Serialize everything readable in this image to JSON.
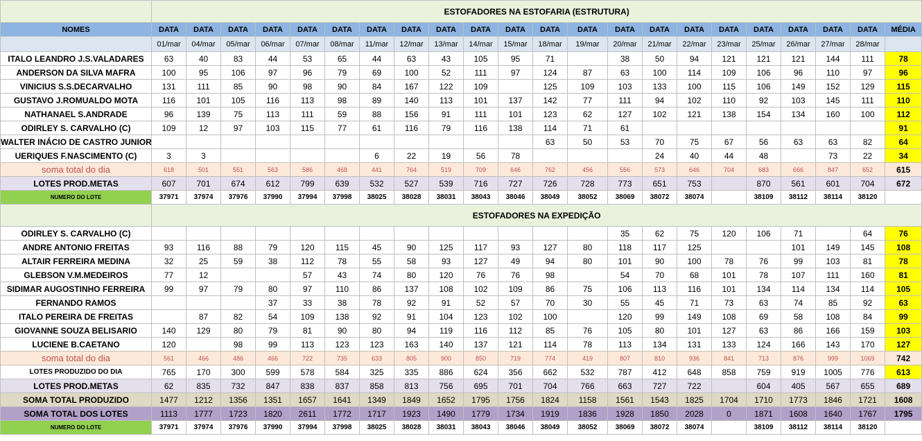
{
  "header": {
    "nomes": "NOMES",
    "data": "DATA",
    "media": "MÉDIA",
    "dates": [
      "01/mar",
      "04/mar",
      "05/mar",
      "06/mar",
      "07/mar",
      "08/mar",
      "11/mar",
      "12/mar",
      "13/mar",
      "14/mar",
      "15/mar",
      "18/mar",
      "19/mar",
      "20/mar",
      "21/mar",
      "22/mar",
      "23/mar",
      "25/mar",
      "26/mar",
      "27/mar",
      "28/mar"
    ]
  },
  "section1": {
    "title": "ESTOFADORES NA ESTOFARIA (ESTRUTURA)",
    "rows": [
      {
        "name": "ITALO LEANDRO J.S.VALADARES",
        "values": [
          "63",
          "40",
          "83",
          "44",
          "53",
          "65",
          "44",
          "63",
          "43",
          "105",
          "95",
          "71",
          "",
          "38",
          "50",
          "94",
          "121",
          "121",
          "121",
          "144",
          "111"
        ],
        "media": "78"
      },
      {
        "name": "ANDERSON DA SILVA MAFRA",
        "values": [
          "100",
          "95",
          "106",
          "97",
          "96",
          "79",
          "69",
          "100",
          "52",
          "111",
          "97",
          "124",
          "87",
          "63",
          "100",
          "114",
          "109",
          "106",
          "96",
          "110",
          "97"
        ],
        "media": "96"
      },
      {
        "name": "VINICIUS S.S.DECARVALHO",
        "values": [
          "131",
          "111",
          "85",
          "90",
          "98",
          "90",
          "84",
          "167",
          "122",
          "109",
          "",
          "125",
          "109",
          "103",
          "133",
          "100",
          "115",
          "106",
          "149",
          "152",
          "129"
        ],
        "media": "115"
      },
      {
        "name": "GUSTAVO J.ROMUALDO MOTA",
        "values": [
          "116",
          "101",
          "105",
          "116",
          "113",
          "98",
          "89",
          "140",
          "113",
          "101",
          "137",
          "142",
          "77",
          "111",
          "94",
          "102",
          "110",
          "92",
          "103",
          "145",
          "111"
        ],
        "media": "110"
      },
      {
        "name": "NATHANAEL S.ANDRADE",
        "values": [
          "96",
          "139",
          "75",
          "113",
          "111",
          "59",
          "88",
          "156",
          "91",
          "111",
          "101",
          "123",
          "62",
          "127",
          "102",
          "121",
          "138",
          "154",
          "134",
          "160",
          "100"
        ],
        "media": "112"
      },
      {
        "name": "ODIRLEY S. CARVALHO (C)",
        "values": [
          "109",
          "12",
          "97",
          "103",
          "115",
          "77",
          "61",
          "116",
          "79",
          "116",
          "138",
          "114",
          "71",
          "61",
          "",
          "",
          "",
          "",
          "",
          "",
          ""
        ],
        "media": "91"
      },
      {
        "name": "WALTER INÁCIO DE CASTRO JUNIOR",
        "values": [
          "",
          "",
          "",
          "",
          "",
          "",
          "",
          "",
          "",
          "",
          "",
          "63",
          "50",
          "53",
          "70",
          "75",
          "67",
          "56",
          "63",
          "63",
          "82"
        ],
        "media": "64"
      },
      {
        "name": "UERIQUES F.NASCIMENTO (C)",
        "values": [
          "3",
          "3",
          "",
          "",
          "",
          "",
          "6",
          "22",
          "19",
          "56",
          "78",
          "",
          "",
          "",
          "24",
          "40",
          "44",
          "48",
          "",
          "73",
          "22"
        ],
        "media": "34"
      }
    ],
    "soma": {
      "name": "soma total  do dia",
      "values": [
        "618",
        "501",
        "551",
        "563",
        "586",
        "468",
        "441",
        "764",
        "519",
        "709",
        "646",
        "762",
        "456",
        "556",
        "573",
        "646",
        "704",
        "683",
        "666",
        "847",
        "652"
      ],
      "media": "615"
    },
    "lotes": {
      "name": "LOTES PROD.METAS",
      "values": [
        "607",
        "701",
        "674",
        "612",
        "799",
        "639",
        "532",
        "527",
        "539",
        "716",
        "727",
        "726",
        "728",
        "773",
        "651",
        "753",
        "",
        "870",
        "561",
        "601",
        "704"
      ],
      "media": "672"
    },
    "numlote": {
      "name": "NUMERO DO LOTE",
      "values": [
        "37971",
        "37974",
        "37976",
        "37990",
        "37994",
        "37998",
        "38025",
        "38028",
        "38031",
        "38043",
        "38046",
        "38049",
        "38052",
        "38069",
        "38072",
        "38074",
        "",
        "38109",
        "38112",
        "38114",
        "38120"
      ],
      "media": ""
    }
  },
  "section2": {
    "title": "ESTOFADORES NA EXPEDIÇÃO",
    "rows": [
      {
        "name": "ODIRLEY S. CARVALHO (C)",
        "values": [
          "",
          "",
          "",
          "",
          "",
          "",
          "",
          "",
          "",
          "",
          "",
          "",
          "",
          "35",
          "62",
          "75",
          "120",
          "106",
          "71",
          "",
          "64"
        ],
        "media": "76"
      },
      {
        "name": "ANDRE ANTONIO FREITAS",
        "values": [
          "93",
          "116",
          "88",
          "79",
          "120",
          "115",
          "45",
          "90",
          "125",
          "117",
          "93",
          "127",
          "80",
          "118",
          "117",
          "125",
          "",
          "",
          "101",
          "149",
          "145"
        ],
        "media": "108"
      },
      {
        "name": "ALTAIR FERREIRA MEDINA",
        "values": [
          "32",
          "25",
          "59",
          "38",
          "112",
          "78",
          "55",
          "58",
          "93",
          "127",
          "49",
          "94",
          "80",
          "101",
          "90",
          "100",
          "78",
          "76",
          "99",
          "103",
          "81"
        ],
        "media": "78"
      },
      {
        "name": "GLEBSON V.M.MEDEIROS",
        "values": [
          "77",
          "12",
          "",
          "",
          "57",
          "43",
          "74",
          "80",
          "120",
          "76",
          "76",
          "98",
          "",
          "54",
          "70",
          "68",
          "101",
          "78",
          "107",
          "111",
          "160"
        ],
        "media": "81"
      },
      {
        "name": "SIDIMAR AUGOSTINHO FERREIRA",
        "values": [
          "99",
          "97",
          "79",
          "80",
          "97",
          "110",
          "86",
          "137",
          "108",
          "102",
          "109",
          "86",
          "75",
          "106",
          "113",
          "116",
          "101",
          "134",
          "114",
          "134",
          "114"
        ],
        "media": "105"
      },
      {
        "name": "FERNANDO RAMOS",
        "values": [
          "",
          "",
          "",
          "37",
          "33",
          "38",
          "78",
          "92",
          "91",
          "52",
          "57",
          "70",
          "30",
          "55",
          "45",
          "71",
          "73",
          "63",
          "74",
          "85",
          "92"
        ],
        "media": "63"
      },
      {
        "name": "ITALO PEREIRA DE FREITAS",
        "values": [
          "",
          "87",
          "82",
          "54",
          "109",
          "138",
          "92",
          "91",
          "104",
          "123",
          "102",
          "100",
          "",
          "120",
          "99",
          "149",
          "108",
          "69",
          "58",
          "108",
          "84"
        ],
        "media": "99"
      },
      {
        "name": "GIOVANNE SOUZA BELISARIO",
        "values": [
          "140",
          "129",
          "80",
          "79",
          "81",
          "90",
          "80",
          "94",
          "119",
          "116",
          "112",
          "85",
          "76",
          "105",
          "80",
          "101",
          "127",
          "63",
          "86",
          "166",
          "159"
        ],
        "media": "103"
      },
      {
        "name": "LUCIENE B.CAETANO",
        "values": [
          "120",
          "",
          "98",
          "99",
          "113",
          "123",
          "123",
          "163",
          "140",
          "137",
          "121",
          "114",
          "78",
          "113",
          "134",
          "131",
          "133",
          "124",
          "166",
          "143",
          "170"
        ],
        "media": "127"
      }
    ],
    "soma": {
      "name": "soma total  do dia",
      "values": [
        "561",
        "466",
        "486",
        "466",
        "722",
        "735",
        "633",
        "805",
        "900",
        "850",
        "719",
        "774",
        "419",
        "807",
        "810",
        "936",
        "841",
        "713",
        "876",
        "999",
        "1069"
      ],
      "media": "742"
    },
    "prod": {
      "name": "LOTES PRODUZIDO DO DIA",
      "values": [
        "765",
        "170",
        "300",
        "599",
        "578",
        "584",
        "325",
        "335",
        "886",
        "624",
        "356",
        "662",
        "532",
        "787",
        "412",
        "648",
        "858",
        "759",
        "919",
        "1005",
        "776"
      ],
      "media": "613"
    },
    "lotes": {
      "name": "LOTES PROD.METAS",
      "values": [
        "62",
        "835",
        "732",
        "847",
        "838",
        "837",
        "858",
        "813",
        "756",
        "695",
        "701",
        "704",
        "766",
        "663",
        "727",
        "722",
        "",
        "604",
        "405",
        "567",
        "655"
      ],
      "media": "689"
    },
    "somaprod": {
      "name": "SOMA TOTAL PRODUZIDO",
      "values": [
        "1477",
        "1212",
        "1356",
        "1351",
        "1657",
        "1641",
        "1349",
        "1849",
        "1652",
        "1795",
        "1756",
        "1824",
        "1158",
        "1561",
        "1543",
        "1825",
        "1704",
        "1710",
        "1773",
        "1846",
        "1721"
      ],
      "media": "1608"
    },
    "somalotes": {
      "name": "SOMA TOTAL DOS LOTES",
      "values": [
        "1113",
        "1777",
        "1723",
        "1820",
        "2611",
        "1772",
        "1717",
        "1923",
        "1490",
        "1779",
        "1734",
        "1919",
        "1836",
        "1928",
        "1850",
        "2028",
        "0",
        "1871",
        "1608",
        "1640",
        "1767"
      ],
      "media": "1795"
    },
    "numlote": {
      "name": "NUMERO DO LOTE",
      "values": [
        "37971",
        "37974",
        "37976",
        "37990",
        "37994",
        "37998",
        "38025",
        "38028",
        "38031",
        "38043",
        "38046",
        "38049",
        "38052",
        "38069",
        "38072",
        "38074",
        "",
        "38109",
        "38112",
        "38114",
        "38120"
      ],
      "media": ""
    }
  }
}
